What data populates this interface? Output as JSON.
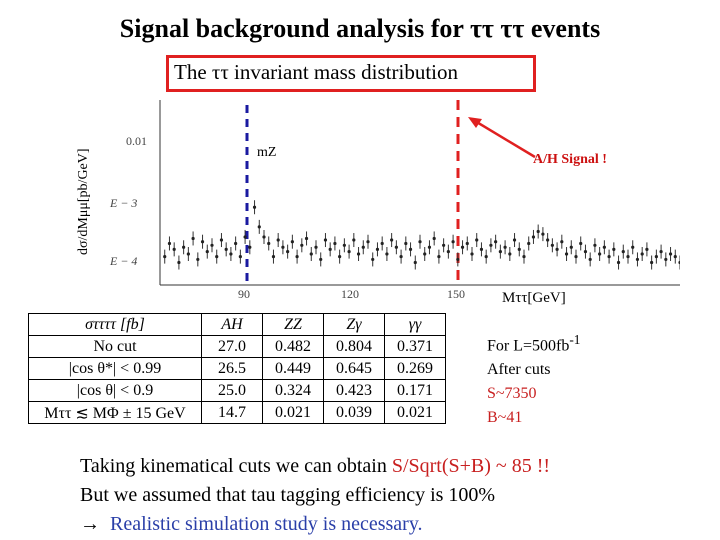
{
  "title": "Signal background analysis for ττ ττ events",
  "subtitle": "The ττ invariant mass distribution",
  "plot": {
    "ylabel": "dσ/dMμμ[pb/GeV]",
    "xlabel": "Mττ[GeV]",
    "mz_label": "mZ",
    "signal_label": "A/H Signal !",
    "y_ticks": [
      "0.01",
      "E − 3",
      "E − 4"
    ],
    "x_ticks": [
      "90",
      "120",
      "150"
    ]
  },
  "chart_data": {
    "type": "scatter",
    "xlabel": "Mττ[GeV]",
    "ylabel": "dσ/dMμμ[pb/GeV]",
    "x_range": [
      70,
      180
    ],
    "y_scale": "log",
    "ylim": [
      5e-05,
      0.015
    ],
    "x_ticks": [
      90,
      120,
      150
    ],
    "y_ticks_labels": [
      "0.01",
      "E − 3",
      "E − 4"
    ],
    "annotations": [
      {
        "label": "mZ",
        "x": 90
      },
      {
        "label": "A/H Signal !",
        "x": 153
      }
    ],
    "series": [
      {
        "x": [
          71,
          72,
          73,
          74,
          75,
          76,
          77,
          78,
          79,
          80,
          81,
          82,
          83,
          84,
          85,
          86,
          87,
          88,
          89,
          90,
          91,
          92,
          93,
          94,
          95,
          96,
          97,
          98,
          99,
          100,
          101,
          102,
          103,
          104,
          105,
          106,
          107,
          108,
          109,
          110,
          111,
          112,
          113,
          114,
          115,
          116,
          117,
          118,
          119,
          120,
          121,
          122,
          123,
          124,
          125,
          126,
          127,
          128,
          129,
          130,
          131,
          132,
          133,
          134,
          135,
          136,
          137,
          138,
          139,
          140,
          141,
          142,
          143,
          144,
          145,
          146,
          147,
          148,
          149,
          150,
          151,
          152,
          153,
          154,
          155,
          156,
          157,
          158,
          159,
          160,
          161,
          162,
          163,
          164,
          165,
          166,
          167,
          168,
          169,
          170,
          171,
          172,
          173,
          174,
          175,
          176,
          177,
          178,
          179,
          180
        ],
        "y": [
          0.00012,
          0.00018,
          0.00015,
          0.0001,
          0.00016,
          0.00013,
          0.00021,
          0.00011,
          0.00019,
          0.00014,
          0.00017,
          0.00012,
          0.0002,
          0.00015,
          0.00013,
          0.00018,
          0.00012,
          0.00022,
          0.00016,
          0.00055,
          0.0003,
          0.00022,
          0.00018,
          0.00012,
          0.0002,
          0.00016,
          0.00014,
          0.00019,
          0.00012,
          0.00017,
          0.00021,
          0.00013,
          0.00016,
          0.00011,
          0.0002,
          0.00015,
          0.00018,
          0.00012,
          0.00017,
          0.00014,
          0.0002,
          0.00013,
          0.00016,
          0.00019,
          0.00011,
          0.00015,
          0.00018,
          0.00013,
          0.0002,
          0.00016,
          0.00012,
          0.00018,
          0.00015,
          0.0001,
          0.00019,
          0.00013,
          0.00016,
          0.00021,
          0.00012,
          0.00017,
          0.00014,
          0.00019,
          0.00011,
          0.00016,
          0.00018,
          0.00013,
          0.0002,
          0.00015,
          0.00012,
          0.00017,
          0.00019,
          0.00014,
          0.00016,
          0.00013,
          0.0002,
          0.00015,
          0.00012,
          0.00018,
          0.00022,
          0.00026,
          0.00024,
          0.0002,
          0.00017,
          0.00015,
          0.00019,
          0.00013,
          0.00016,
          0.00012,
          0.00018,
          0.00014,
          0.00011,
          0.00017,
          0.00013,
          0.00016,
          0.00012,
          0.00015,
          0.0001,
          0.00014,
          0.00012,
          0.00016,
          0.00011,
          0.00013,
          0.00015,
          0.0001,
          0.00012,
          0.00014,
          0.00011,
          0.00013,
          0.00012,
          0.0001
        ]
      }
    ]
  },
  "table": {
    "headers": [
      "σττττ [fb]",
      "AH",
      "ZZ",
      "Zγ",
      "γγ"
    ],
    "rows": [
      [
        "No cut",
        "27.0",
        "0.482",
        "0.804",
        "0.371"
      ],
      [
        "|cos θ*| < 0.99",
        "26.5",
        "0.449",
        "0.645",
        "0.269"
      ],
      [
        "|cos θ| < 0.9",
        "25.0",
        "0.324",
        "0.423",
        "0.171"
      ],
      [
        "Mττ ≲ MΦ ± 15 GeV",
        "14.7",
        "0.021",
        "0.039",
        "0.021"
      ]
    ]
  },
  "luminosity": {
    "line1_prefix": "For L=500fb",
    "line1_sup": "-1",
    "line2": "After cuts",
    "signal": "S~7350",
    "background": "B~41"
  },
  "bottom": {
    "line1_prefix": "Taking kinematical cuts we can obtain ",
    "line1_highlight": "S/Sqrt(S+B) ~ 85 !!",
    "line2": "But we assumed that tau tagging efficiency is 100%",
    "line3_arrow": "→",
    "line3_text": "Realistic simulation study is necessary."
  },
  "colors": {
    "red": "#e02020",
    "blue": "#2a3fa8",
    "mz_line": "#1a1aa0"
  }
}
